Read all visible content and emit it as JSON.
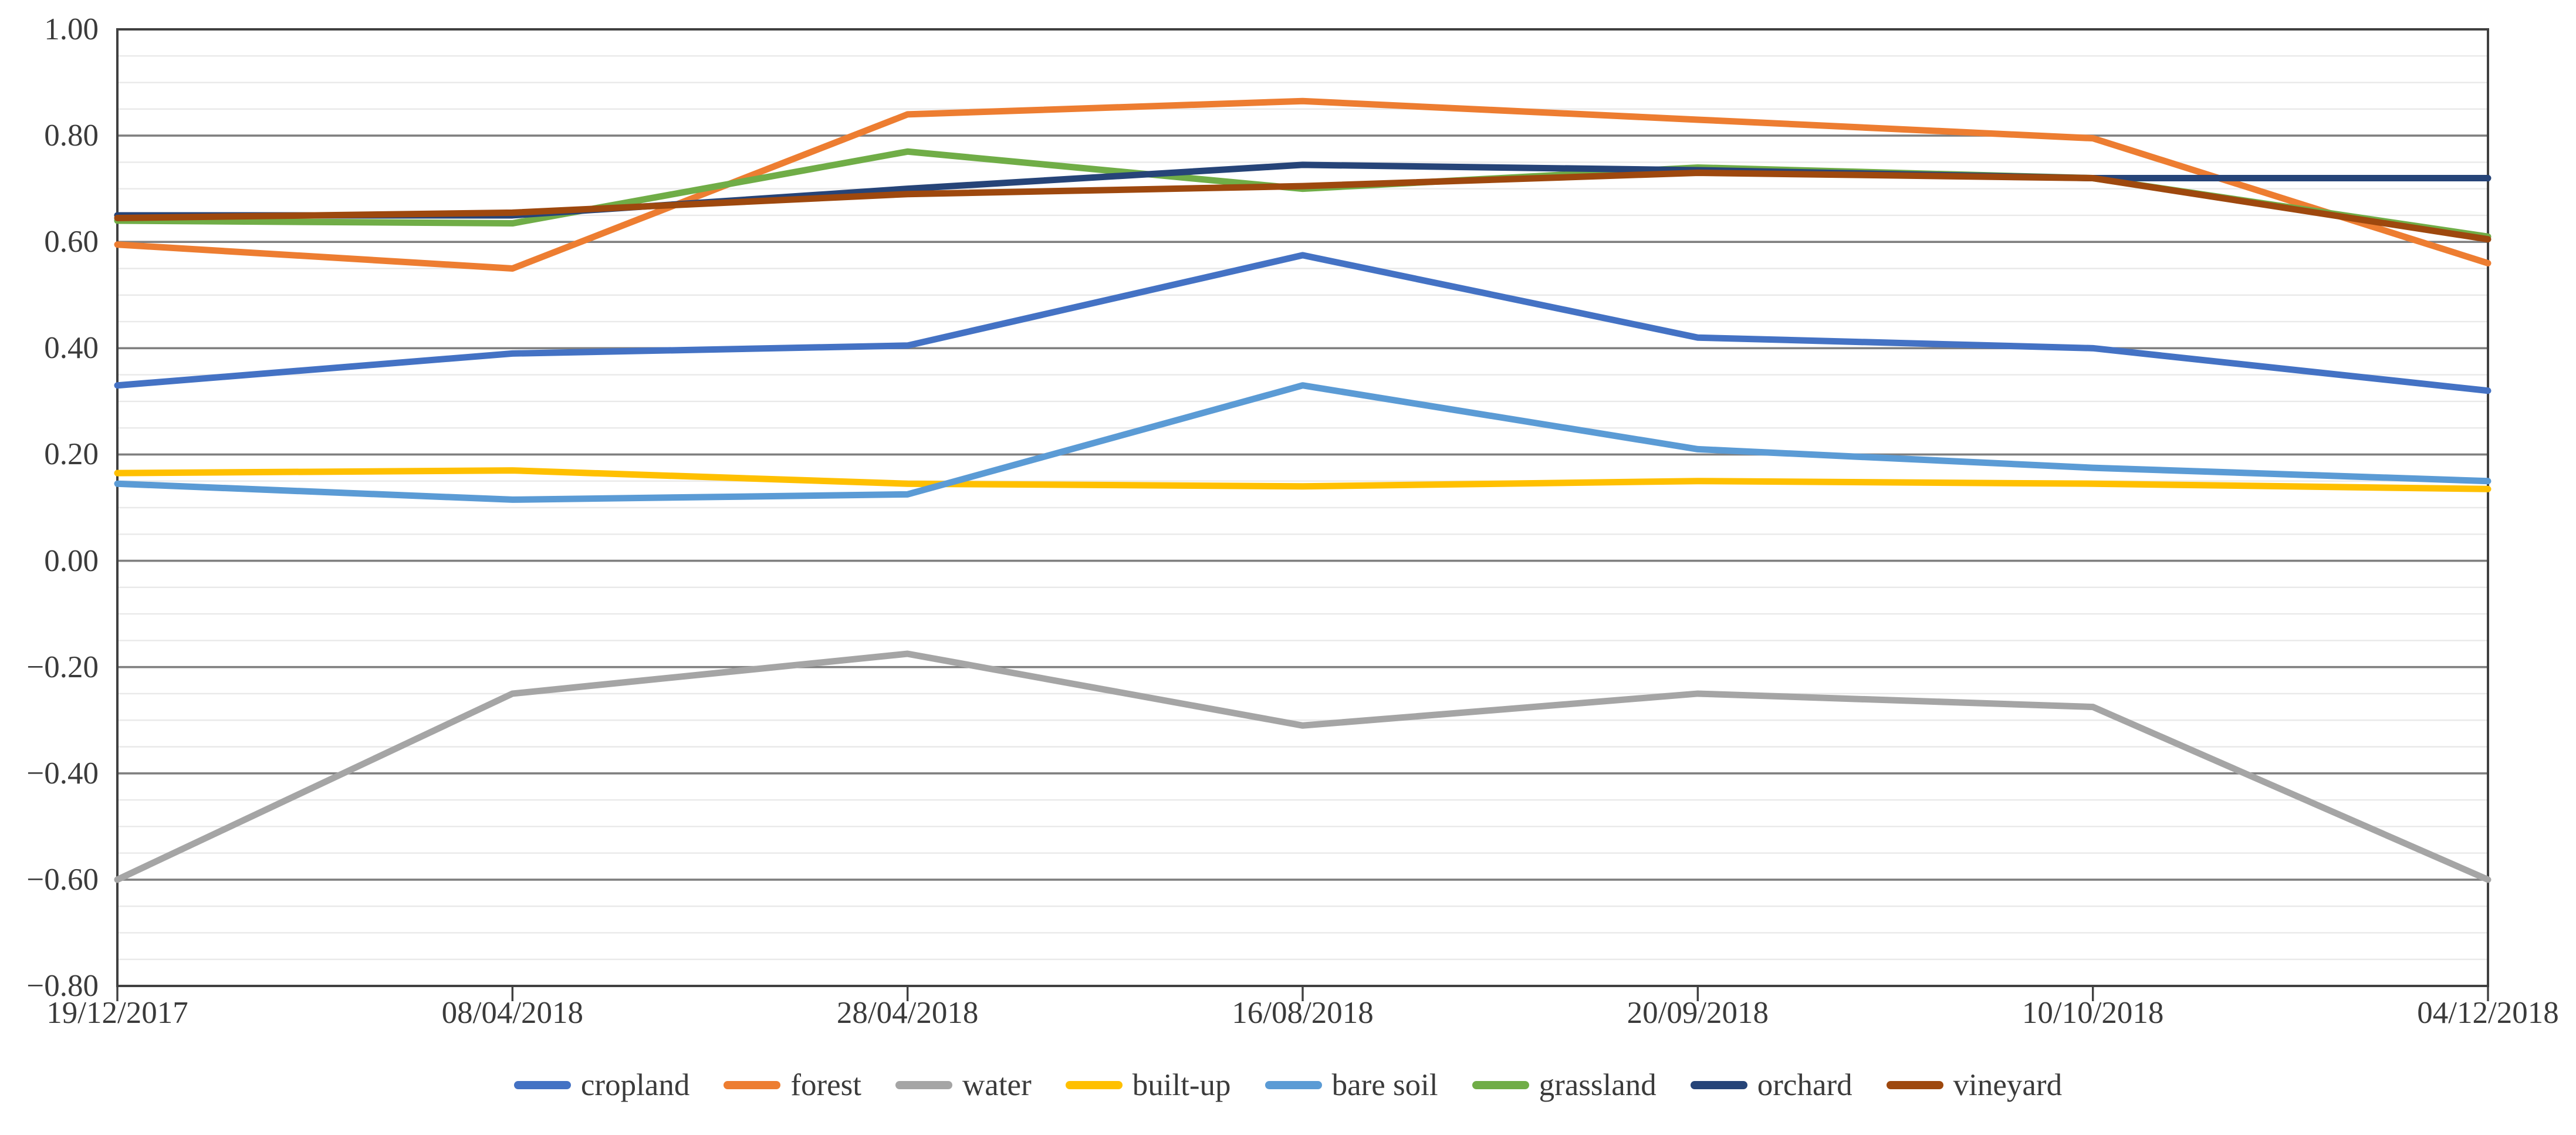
{
  "chart_data": {
    "type": "line",
    "title": "",
    "xlabel": "",
    "ylabel": "",
    "categories": [
      "19/12/2017",
      "08/04/2018",
      "28/04/2018",
      "16/08/2018",
      "20/09/2018",
      "10/10/2018",
      "04/12/2018"
    ],
    "series": [
      {
        "name": "cropland",
        "color": "#4472C4",
        "values": [
          0.33,
          0.39,
          0.405,
          0.575,
          0.42,
          0.4,
          0.32
        ]
      },
      {
        "name": "forest",
        "color": "#ED7D31",
        "values": [
          0.595,
          0.55,
          0.84,
          0.865,
          0.83,
          0.795,
          0.56
        ]
      },
      {
        "name": "water",
        "color": "#A5A5A5",
        "values": [
          -0.6,
          -0.25,
          -0.175,
          -0.31,
          -0.25,
          -0.275,
          -0.6
        ]
      },
      {
        "name": "built-up",
        "color": "#FFC000",
        "values": [
          0.165,
          0.17,
          0.145,
          0.14,
          0.15,
          0.145,
          0.135
        ]
      },
      {
        "name": "bare soil",
        "color": "#5B9BD5",
        "values": [
          0.145,
          0.115,
          0.125,
          0.33,
          0.21,
          0.175,
          0.15
        ]
      },
      {
        "name": "grassland",
        "color": "#70AD47",
        "values": [
          0.64,
          0.635,
          0.77,
          0.7,
          0.74,
          0.72,
          0.61
        ]
      },
      {
        "name": "orchard",
        "color": "#264478",
        "values": [
          0.65,
          0.65,
          0.7,
          0.745,
          0.735,
          0.72,
          0.72
        ]
      },
      {
        "name": "vineyard",
        "color": "#9E480E",
        "values": [
          0.645,
          0.655,
          0.69,
          0.705,
          0.73,
          0.72,
          0.605
        ]
      }
    ],
    "ylim": [
      -0.8,
      1.0
    ],
    "y_major_interval": 0.2,
    "y_minor_interval": 0.05,
    "y_tick_labels": [
      "1.00",
      "0.80",
      "0.60",
      "0.40",
      "0.20",
      "0.00",
      "−0.20",
      "−0.40",
      "−0.60",
      "−0.80"
    ],
    "grid": "horizontal major (dark) + minor (light)",
    "legend_position": "bottom",
    "styles": {
      "major_gridline_color": "#7F7F7F",
      "minor_gridline_color": "#E9E9E9",
      "axis_border_color": "#404040",
      "tick_color": "#404040",
      "label_color": "#3B3B3B",
      "background_color": "#FFFFFF"
    }
  }
}
